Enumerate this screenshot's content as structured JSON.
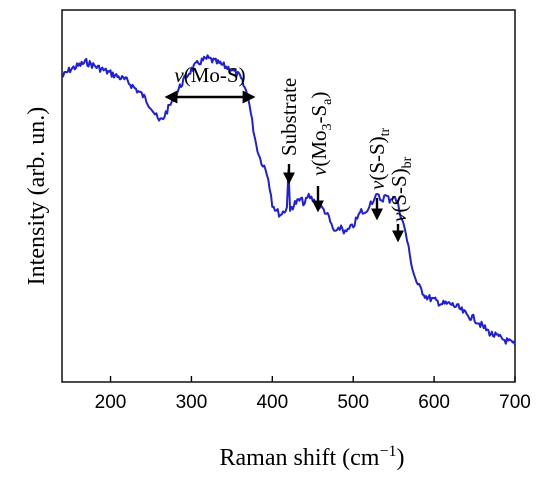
{
  "chart_data": {
    "type": "line",
    "xlabel": "Raman shift (cm",
    "xlabel_sup": "−1",
    "xlabel_end": ")",
    "ylabel": "Intensity (arb. un.)",
    "xlim": [
      140,
      700
    ],
    "ylim": [
      0,
      1
    ],
    "xticks": [
      200,
      300,
      400,
      500,
      600,
      700
    ],
    "yticks_shown": false,
    "grid": false,
    "colors": {
      "line": "#1f1fd6",
      "axes": "#000000"
    },
    "x": [
      140,
      150,
      160,
      170,
      180,
      190,
      200,
      210,
      220,
      230,
      240,
      250,
      255,
      260,
      265,
      270,
      280,
      290,
      300,
      310,
      320,
      330,
      340,
      350,
      360,
      370,
      375,
      380,
      385,
      390,
      395,
      400,
      405,
      410,
      415,
      418,
      420,
      422,
      424,
      428,
      435,
      440,
      445,
      450,
      455,
      460,
      465,
      470,
      475,
      480,
      485,
      490,
      495,
      500,
      505,
      510,
      515,
      520,
      525,
      530,
      535,
      540,
      545,
      550,
      555,
      560,
      565,
      570,
      575,
      580,
      590,
      600,
      610,
      620,
      630,
      640,
      650,
      660,
      670,
      680,
      690,
      700
    ],
    "y": [
      0.82,
      0.84,
      0.85,
      0.86,
      0.85,
      0.84,
      0.83,
      0.82,
      0.81,
      0.79,
      0.77,
      0.74,
      0.72,
      0.7,
      0.71,
      0.73,
      0.77,
      0.81,
      0.84,
      0.86,
      0.87,
      0.86,
      0.85,
      0.84,
      0.82,
      0.77,
      0.7,
      0.64,
      0.6,
      0.58,
      0.55,
      0.48,
      0.46,
      0.45,
      0.46,
      0.47,
      0.57,
      0.46,
      0.47,
      0.48,
      0.49,
      0.48,
      0.5,
      0.49,
      0.48,
      0.47,
      0.46,
      0.44,
      0.41,
      0.4,
      0.42,
      0.4,
      0.41,
      0.42,
      0.44,
      0.46,
      0.45,
      0.48,
      0.49,
      0.5,
      0.49,
      0.5,
      0.49,
      0.5,
      0.48,
      0.44,
      0.4,
      0.34,
      0.29,
      0.26,
      0.23,
      0.22,
      0.21,
      0.21,
      0.2,
      0.18,
      0.17,
      0.15,
      0.13,
      0.12,
      0.11,
      0.1
    ],
    "annotations": [
      {
        "id": "mos",
        "italic": "v",
        "parts": [
          {
            "t": "(Mo-S)"
          }
        ]
      },
      {
        "id": "substrate",
        "parts": [
          {
            "t": "Substrate"
          }
        ]
      },
      {
        "id": "mo3",
        "italic": "v",
        "parts": [
          {
            "t": "(Mo"
          },
          {
            "t": "3",
            "sub": true
          },
          {
            "t": "-S"
          },
          {
            "t": "a",
            "sub": true
          },
          {
            "t": ")"
          }
        ]
      },
      {
        "id": "sstr",
        "italic": "v",
        "parts": [
          {
            "t": "(S-S)"
          },
          {
            "t": "tr",
            "sub": true
          }
        ]
      },
      {
        "id": "ssbr",
        "italic": "v",
        "parts": [
          {
            "t": "(S-S)"
          },
          {
            "t": "br",
            "sub": true
          }
        ]
      }
    ]
  }
}
